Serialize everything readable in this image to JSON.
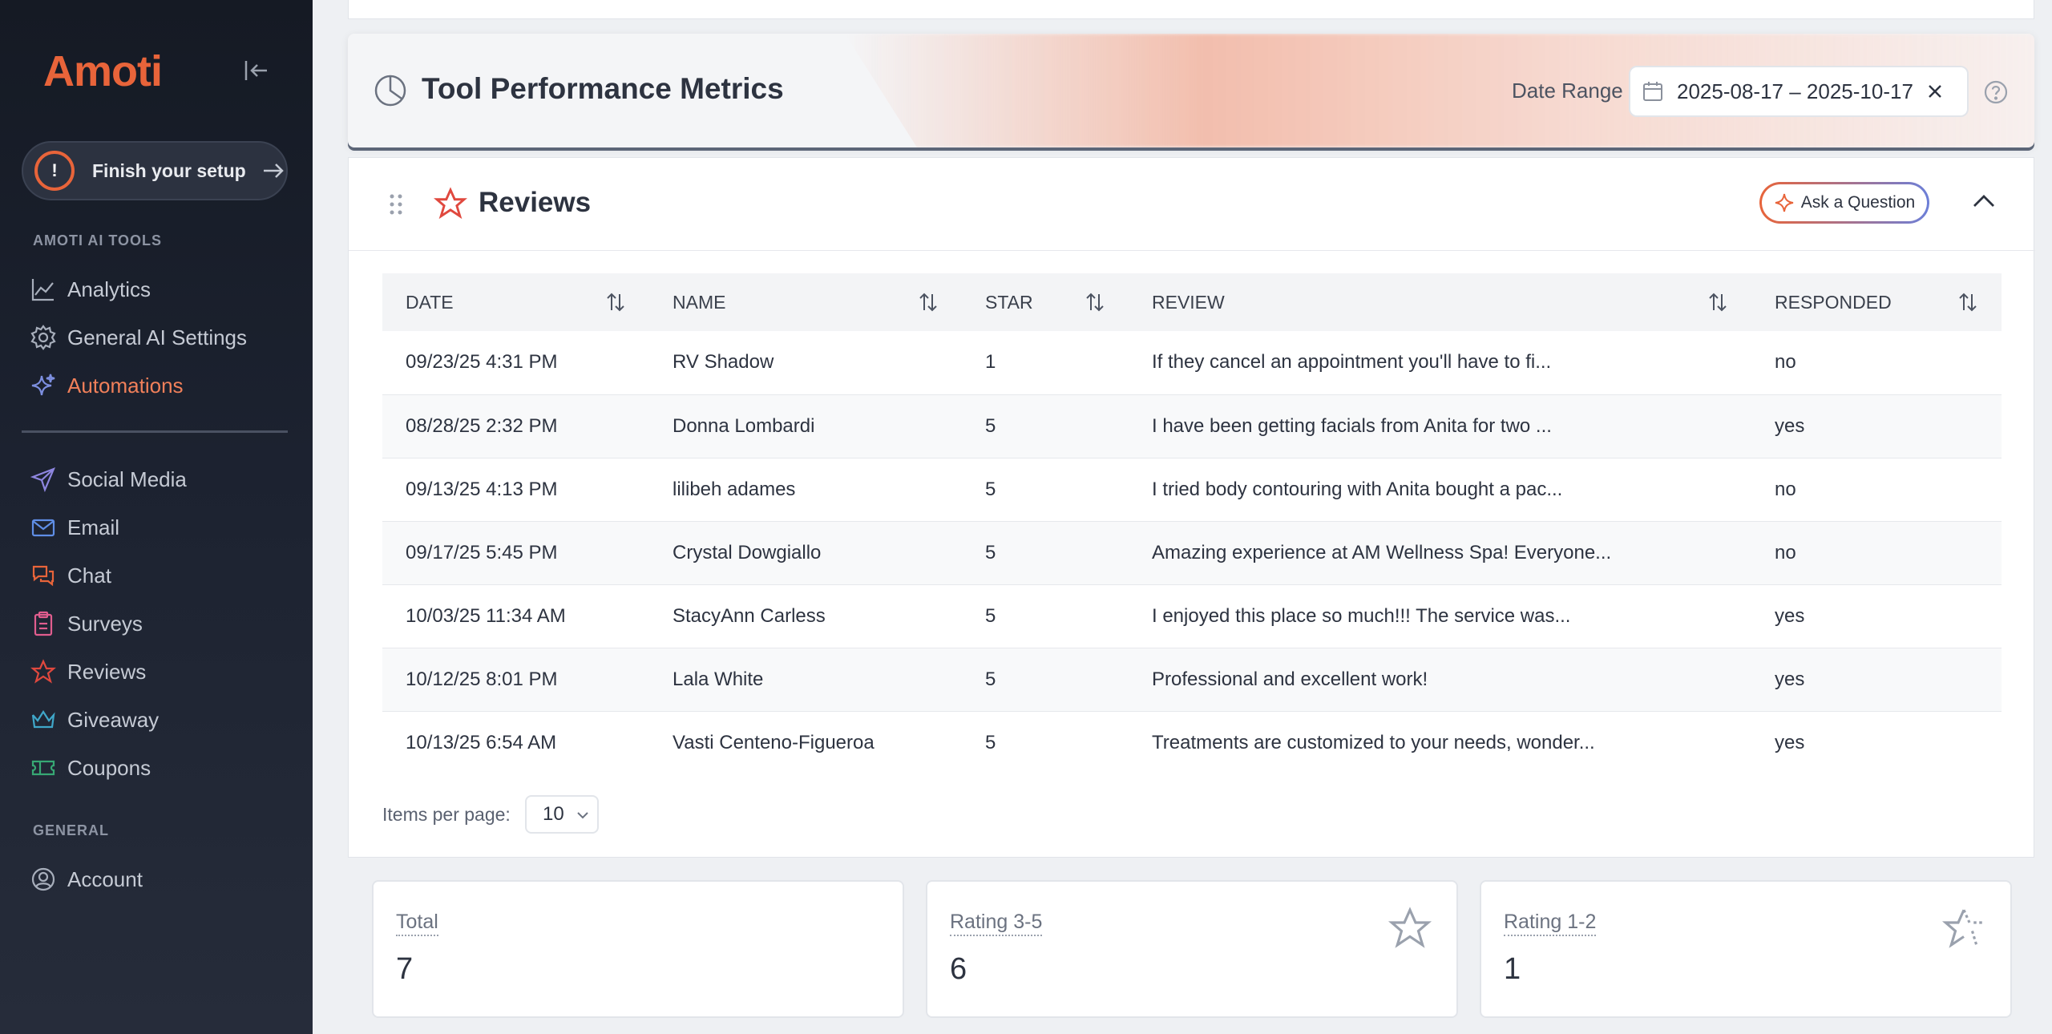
{
  "sidebar": {
    "logo": "Amoti",
    "setup_label": "Finish your setup",
    "setup_badge": "!",
    "sections": {
      "ai_tools": "AMOTI AI TOOLS",
      "general": "GENERAL"
    },
    "ai_items": [
      {
        "label": "Analytics",
        "icon": "chart-line-icon"
      },
      {
        "label": "General AI Settings",
        "icon": "gear-icon"
      },
      {
        "label": "Automations",
        "icon": "sparkle-icon",
        "active": true
      }
    ],
    "tool_items": [
      {
        "label": "Social Media",
        "icon": "paper-plane-icon"
      },
      {
        "label": "Email",
        "icon": "envelope-icon"
      },
      {
        "label": "Chat",
        "icon": "chat-bubbles-icon"
      },
      {
        "label": "Surveys",
        "icon": "clipboard-icon"
      },
      {
        "label": "Reviews",
        "icon": "star-icon"
      },
      {
        "label": "Giveaway",
        "icon": "crown-icon"
      },
      {
        "label": "Coupons",
        "icon": "ticket-icon"
      }
    ],
    "general_items": [
      {
        "label": "Account",
        "icon": "user-circle-icon"
      }
    ]
  },
  "header": {
    "title": "Tool Performance Metrics",
    "date_range_label": "Date Range",
    "date_range_value": "2025-08-17 – 2025-10-17"
  },
  "reviews": {
    "title": "Reviews",
    "ask_button": "Ask a Question",
    "columns": [
      "DATE",
      "NAME",
      "STAR",
      "REVIEW",
      "RESPONDED"
    ],
    "rows": [
      {
        "date": "09/23/25 4:31 PM",
        "name": "RV Shadow",
        "star": "1",
        "review": "If they cancel an appointment you'll have to fi...",
        "responded": "no"
      },
      {
        "date": "08/28/25 2:32 PM",
        "name": "Donna Lombardi",
        "star": "5",
        "review": "I have been getting facials from Anita for two ...",
        "responded": "yes"
      },
      {
        "date": "09/13/25 4:13 PM",
        "name": "lilibeh adames",
        "star": "5",
        "review": "I tried body contouring with Anita bought a pac...",
        "responded": "no"
      },
      {
        "date": "09/17/25 5:45 PM",
        "name": "Crystal Dowgiallo",
        "star": "5",
        "review": "Amazing experience at AM Wellness Spa! Everyone...",
        "responded": "no"
      },
      {
        "date": "10/03/25 11:34 AM",
        "name": "StacyAnn Carless",
        "star": "5",
        "review": "I enjoyed this place so much!!! The service was...",
        "responded": "yes"
      },
      {
        "date": "10/12/25 8:01 PM",
        "name": "Lala White",
        "star": "5",
        "review": "Professional and excellent work!",
        "responded": "yes"
      },
      {
        "date": "10/13/25 6:54 AM",
        "name": "Vasti Centeno-Figueroa",
        "star": "5",
        "review": "Treatments are customized to your needs, wonder...",
        "responded": "yes"
      }
    ],
    "items_per_page_label": "Items per page:",
    "items_per_page_value": "10"
  },
  "stats": [
    {
      "label": "Total",
      "value": "7",
      "icon": ""
    },
    {
      "label": "Rating 3-5",
      "value": "6",
      "icon": "star-outline-icon"
    },
    {
      "label": "Rating 1-2",
      "value": "1",
      "icon": "star-half-icon"
    }
  ],
  "colors": {
    "accent": "#e8643a",
    "sidebar_bg": "#1c2230",
    "active_text": "#f1805a"
  }
}
